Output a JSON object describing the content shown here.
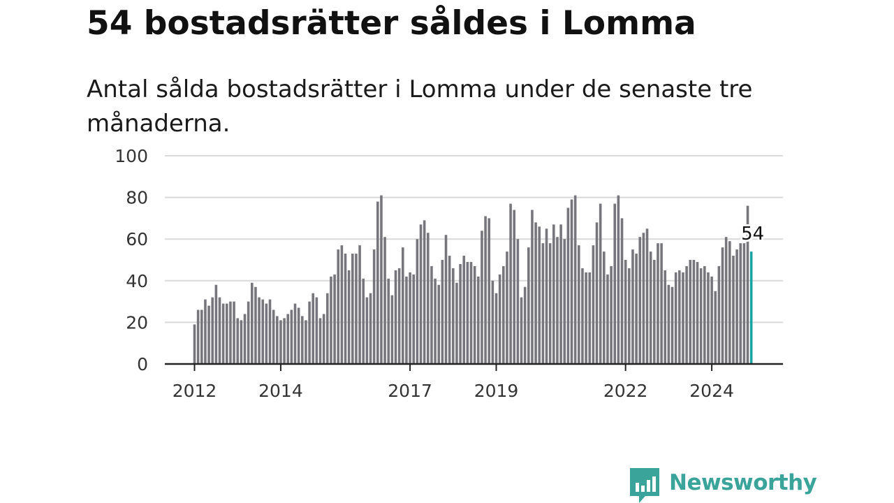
{
  "header": {
    "title": "54 bostadsrätter såldes i Lomma",
    "subtitle": "Antal sålda bostadsrätter i Lomma under de senaste tre månaderna."
  },
  "brand": {
    "name": "Newsworthy",
    "logo_icon": "newsworthy-bar-chart-bubble-icon",
    "color": "#3aa39a"
  },
  "colors": {
    "bar": "#77767c",
    "highlight": "#1aa3a3",
    "grid": "#d9d9d9",
    "axis": "#222222"
  },
  "chart_data": {
    "type": "bar",
    "title": "",
    "xlabel": "",
    "ylabel": "",
    "ylim": [
      0,
      100
    ],
    "yticks": [
      0,
      20,
      40,
      60,
      80,
      100
    ],
    "xticks": [
      "2012",
      "2014",
      "2017",
      "2019",
      "2022",
      "2024"
    ],
    "grid": true,
    "start": "2012-01",
    "frequency": "monthly",
    "series": [
      {
        "values": [
          19,
          26,
          26,
          31,
          28,
          32,
          38,
          32,
          29,
          29,
          30,
          30,
          22,
          21,
          24,
          30,
          39,
          37,
          32,
          31,
          29,
          31,
          26,
          23,
          21,
          22,
          24,
          26,
          29,
          27,
          23,
          21,
          30,
          34,
          32,
          22,
          24,
          34,
          42,
          43,
          55,
          57,
          53,
          45,
          53,
          53,
          57,
          41,
          32,
          34,
          55,
          78,
          81,
          61,
          41,
          33,
          45,
          46,
          56,
          42,
          44,
          43,
          60,
          67,
          69,
          63,
          47,
          41,
          38,
          50,
          62,
          52,
          46,
          39,
          48,
          52,
          49,
          49,
          47,
          42,
          64,
          71,
          70,
          40,
          34,
          43,
          47,
          54,
          77,
          74,
          60,
          32,
          37,
          56,
          74,
          68,
          66,
          58,
          65,
          58,
          67,
          61,
          67,
          60,
          75,
          79,
          81,
          57,
          46,
          44,
          44,
          57,
          68,
          77,
          54,
          43,
          47,
          77,
          81,
          70,
          50,
          46,
          55,
          53,
          61,
          63,
          65,
          54,
          50,
          58,
          58,
          45,
          38,
          37,
          44,
          45,
          44,
          47,
          50,
          50,
          49,
          46,
          47,
          44,
          42,
          35,
          47,
          56,
          61,
          59,
          52,
          55,
          58,
          58,
          76,
          54
        ]
      }
    ],
    "annotations": [
      {
        "index": 155,
        "label": "54"
      }
    ]
  }
}
